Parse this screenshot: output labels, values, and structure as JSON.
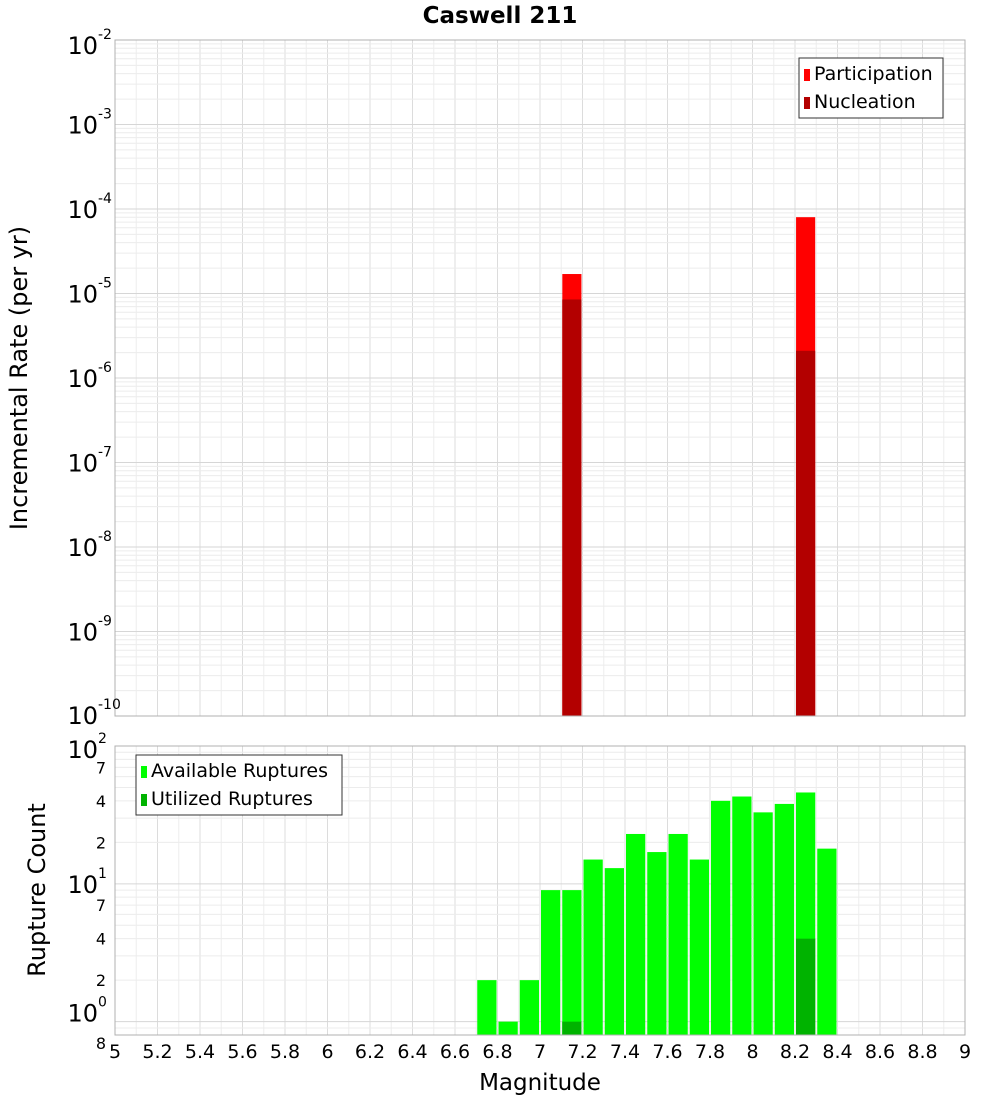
{
  "chart_data": {
    "title": "Caswell 211",
    "xlabel": "Magnitude",
    "xlim": [
      5,
      9
    ],
    "x_ticks": [
      "5",
      "5.2",
      "5.4",
      "5.6",
      "5.8",
      "6",
      "6.2",
      "6.4",
      "6.6",
      "6.8",
      "7",
      "7.2",
      "7.4",
      "7.6",
      "7.8",
      "8",
      "8.2",
      "8.4",
      "8.6",
      "8.8",
      "9"
    ],
    "panels": [
      {
        "type": "bar",
        "ylabel": "Incremental Rate (per yr)",
        "yscale": "log",
        "ylim": [
          1e-10,
          0.01
        ],
        "y_ticks": [
          {
            "base": "10",
            "exp": "-2",
            "value": 0.01
          },
          {
            "base": "10",
            "exp": "-3",
            "value": 0.001
          },
          {
            "base": "10",
            "exp": "-4",
            "value": 0.0001
          },
          {
            "base": "10",
            "exp": "-5",
            "value": 1e-05
          },
          {
            "base": "10",
            "exp": "-6",
            "value": 1e-06
          },
          {
            "base": "10",
            "exp": "-7",
            "value": 1e-07
          },
          {
            "base": "10",
            "exp": "-8",
            "value": 1e-08
          },
          {
            "base": "10",
            "exp": "-9",
            "value": 1e-09
          },
          {
            "base": "10",
            "exp": "-10",
            "value": 1e-10
          }
        ],
        "grid": true,
        "legend_position": "top-right",
        "series": [
          {
            "name": "Participation",
            "color": "#ff0000",
            "x": [
              7.15,
              8.25
            ],
            "values": [
              1.7e-05,
              8e-05
            ]
          },
          {
            "name": "Nucleation",
            "color": "#b30000",
            "x": [
              7.15,
              8.25
            ],
            "values": [
              8.5e-06,
              2.1e-06
            ]
          }
        ]
      },
      {
        "type": "bar",
        "ylabel": "Rupture Count",
        "yscale": "log",
        "ylim": [
          0.8,
          100
        ],
        "y_ticks": [
          {
            "base": "10",
            "exp": "2",
            "value": 100
          },
          {
            "base": "10",
            "exp": "1",
            "value": 10
          },
          {
            "base": "10",
            "exp": "0",
            "value": 1
          }
        ],
        "y_minor_ticks": [
          {
            "label": "7",
            "value": 70
          },
          {
            "label": "4",
            "value": 40
          },
          {
            "label": "2",
            "value": 20
          },
          {
            "label": "7",
            "value": 7
          },
          {
            "label": "4",
            "value": 4
          },
          {
            "label": "2",
            "value": 2
          },
          {
            "label": "8",
            "value": 0.8
          }
        ],
        "grid": true,
        "legend_position": "top-left",
        "series": [
          {
            "name": "Available Ruptures",
            "color": "#00ff00",
            "x": [
              6.75,
              6.85,
              6.95,
              7.05,
              7.15,
              7.25,
              7.35,
              7.45,
              7.55,
              7.65,
              7.75,
              7.85,
              7.95,
              8.05,
              8.15,
              8.25,
              8.35
            ],
            "values": [
              2,
              1,
              2,
              9,
              9,
              15,
              13,
              23,
              17,
              23,
              15,
              40,
              43,
              33,
              38,
              46,
              18
            ]
          },
          {
            "name": "Utilized Ruptures",
            "color": "#00b300",
            "x": [
              7.15,
              8.25
            ],
            "values": [
              1,
              4
            ]
          }
        ]
      }
    ]
  }
}
